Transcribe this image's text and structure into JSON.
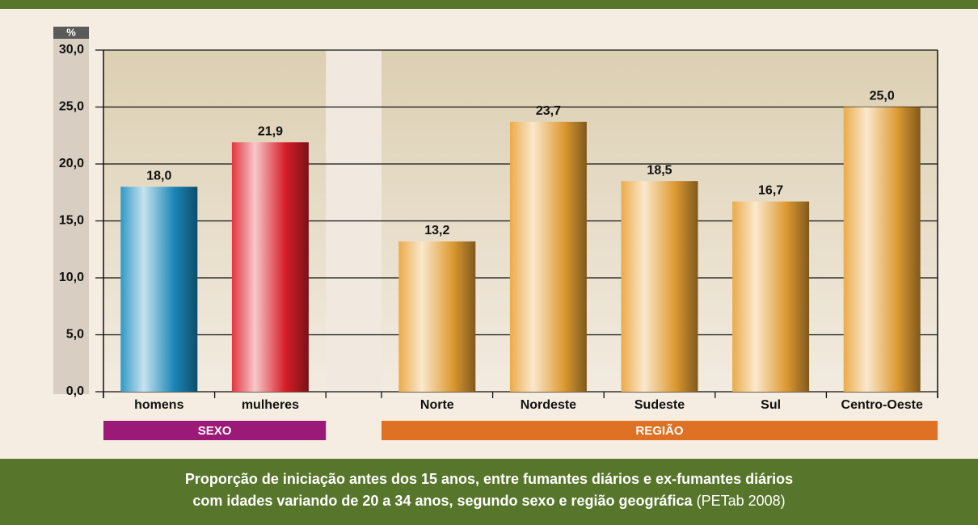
{
  "chart_data": {
    "type": "bar",
    "unit_label": "%",
    "categories": [
      "homens",
      "mulheres",
      null,
      "Norte",
      "Nordeste",
      "Sudeste",
      "Sul",
      "Centro-Oeste"
    ],
    "values": [
      18.0,
      21.9,
      null,
      13.2,
      23.7,
      18.5,
      16.7,
      25.0
    ],
    "value_labels": [
      "18,0",
      "21,9",
      null,
      "13,2",
      "23,7",
      "18,5",
      "16,7",
      "25,0"
    ],
    "colors": [
      "#1a8cc0",
      "#e01e28",
      null,
      "#e9a235",
      "#e9a235",
      "#e9a235",
      "#e9a235",
      "#e9a235"
    ],
    "groups": [
      {
        "label": "SEXO",
        "color": "#9b1a78"
      },
      {
        "label": "REGIÃO",
        "color": "#df7124"
      }
    ],
    "ylim": [
      0,
      30
    ],
    "yticks": [
      {
        "value": 0,
        "label": "0,0"
      },
      {
        "value": 5,
        "label": "5,0"
      },
      {
        "value": 10,
        "label": "10,0"
      },
      {
        "value": 15,
        "label": "15,0"
      },
      {
        "value": 20,
        "label": "20,0"
      },
      {
        "value": 25,
        "label": "25,0"
      },
      {
        "value": 30,
        "label": "30,0"
      }
    ],
    "grid": true,
    "caption": [
      "Proporção de iniciação antes dos 15 anos, entre fumantes diários e ex-fumantes diários",
      "com idades variando de 20 a 34 anos, segundo sexo e região geográfica"
    ],
    "source": "(PETab 2008)"
  }
}
